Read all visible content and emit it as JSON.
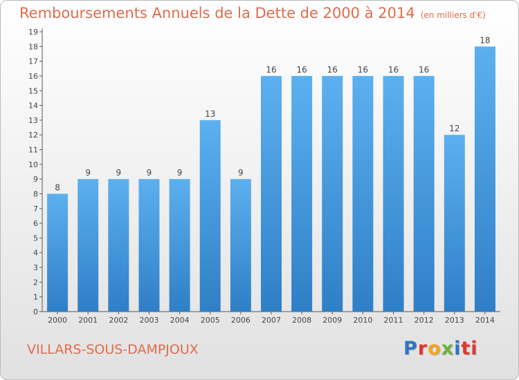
{
  "header": {
    "title": "Remboursements Annuels de la Dette de 2000 à 2014",
    "unit": "(en milliers d'€)"
  },
  "commune": "VILLARS-SOUS-DAMPJOUX",
  "logo": {
    "letters": [
      "P",
      "r",
      "o",
      "x",
      "i",
      "ti"
    ]
  },
  "colors": {
    "bar": "#3d8fd6",
    "title": "#e06b4c"
  },
  "chart_data": {
    "type": "bar",
    "categories": [
      "2000",
      "2001",
      "2002",
      "2003",
      "2004",
      "2005",
      "2006",
      "2007",
      "2008",
      "2009",
      "2010",
      "2011",
      "2012",
      "2013",
      "2014"
    ],
    "values": [
      8,
      9,
      9,
      9,
      9,
      13,
      9,
      16,
      16,
      16,
      16,
      16,
      16,
      12,
      18
    ],
    "ylim": [
      0,
      19
    ],
    "yticks": [
      0,
      1,
      2,
      3,
      4,
      5,
      6,
      7,
      8,
      9,
      10,
      11,
      12,
      13,
      14,
      15,
      16,
      17,
      18,
      19
    ],
    "grid": false,
    "legend": "none"
  }
}
